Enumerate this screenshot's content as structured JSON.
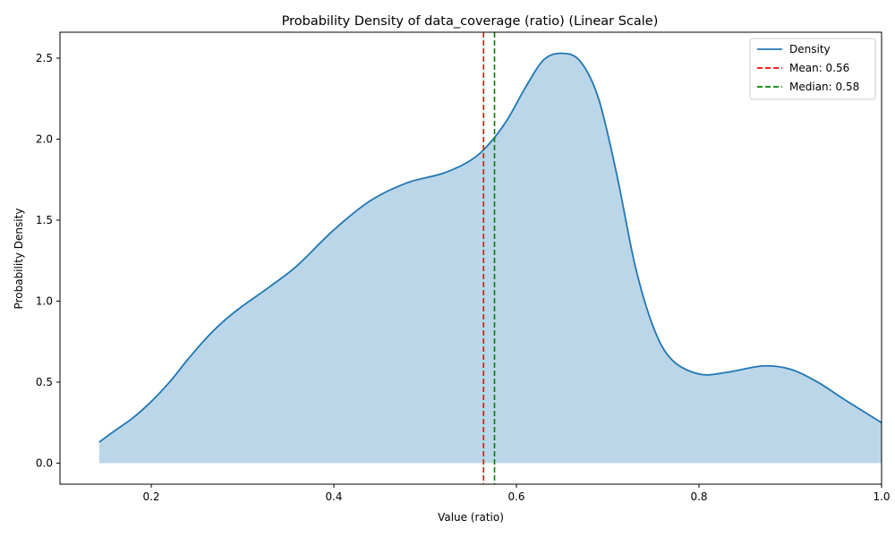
{
  "chart_data": {
    "type": "area",
    "title": "Probability Density of data_coverage (ratio) (Linear Scale)",
    "xlabel": "Value (ratio)",
    "ylabel": "Probability Density",
    "xlim": [
      0.1,
      1.0
    ],
    "ylim": [
      -0.13,
      2.66
    ],
    "x_ticks": [
      0.2,
      0.4,
      0.6,
      0.8,
      1.0
    ],
    "x_tick_labels": [
      "0.2",
      "0.4",
      "0.6",
      "0.8",
      "1.0"
    ],
    "y_ticks": [
      0.0,
      0.5,
      1.0,
      1.5,
      2.0,
      2.5
    ],
    "y_tick_labels": [
      "0.0",
      "0.5",
      "1.0",
      "1.5",
      "2.0",
      "2.5"
    ],
    "grid": false,
    "legend_position": "top-right",
    "series": [
      {
        "name": "Density",
        "color": "#1f77b4",
        "fill_color": "#1f77b4",
        "fill_opacity": 0.3,
        "x": [
          0.143,
          0.16,
          0.18,
          0.2,
          0.22,
          0.24,
          0.26,
          0.28,
          0.3,
          0.33,
          0.36,
          0.4,
          0.44,
          0.48,
          0.52,
          0.55,
          0.57,
          0.59,
          0.61,
          0.63,
          0.65,
          0.67,
          0.69,
          0.71,
          0.73,
          0.75,
          0.77,
          0.8,
          0.83,
          0.87,
          0.9,
          0.93,
          0.96,
          1.0
        ],
        "y": [
          0.13,
          0.2,
          0.28,
          0.38,
          0.5,
          0.64,
          0.77,
          0.88,
          0.97,
          1.09,
          1.22,
          1.44,
          1.62,
          1.73,
          1.79,
          1.87,
          1.97,
          2.12,
          2.32,
          2.49,
          2.53,
          2.48,
          2.25,
          1.78,
          1.22,
          0.84,
          0.64,
          0.55,
          0.56,
          0.6,
          0.58,
          0.5,
          0.39,
          0.25
        ]
      }
    ],
    "reference_lines": [
      {
        "name": "Mean: 0.56",
        "x": 0.564,
        "color": "#ff0000",
        "style": "dashed"
      },
      {
        "name": "Median: 0.58",
        "x": 0.576,
        "color": "#008000",
        "style": "dashed"
      }
    ]
  }
}
